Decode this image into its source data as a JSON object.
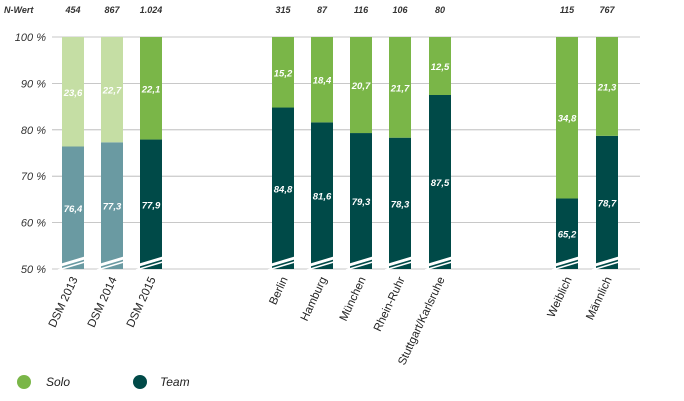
{
  "chart_data": {
    "type": "bar",
    "stacked": true,
    "n_label": "N-Wert",
    "y_ticks": [
      "100 %",
      "90 %",
      "80 %",
      "70 %",
      "60 %",
      "50 %"
    ],
    "y_tick_values": [
      100,
      90,
      80,
      70,
      60,
      50
    ],
    "ylim": [
      50,
      100
    ],
    "axis_break": true,
    "categories": [
      "DSM 2013",
      "DSM 2014",
      "DSM 2015",
      "Berlin",
      "Hamburg",
      "München",
      "Rhein-Ruhr",
      "Stuttgart/Karlsruhe",
      "Weiblich",
      "Männlich"
    ],
    "n_values": [
      "454",
      "867",
      "1.024",
      "315",
      "87",
      "116",
      "106",
      "80",
      "115",
      "767"
    ],
    "series": [
      {
        "name": "Team",
        "values": [
          76.4,
          77.3,
          77.9,
          84.8,
          81.6,
          79.3,
          78.3,
          87.5,
          65.2,
          78.7
        ],
        "labels": [
          "76,4",
          "77,3",
          "77,9",
          "84,8",
          "81,6",
          "79,3",
          "78,3",
          "87,5",
          "65,2",
          "78,7"
        ]
      },
      {
        "name": "Solo",
        "values": [
          23.6,
          22.7,
          22.1,
          15.2,
          18.4,
          20.7,
          21.7,
          12.5,
          34.8,
          21.3
        ],
        "labels": [
          "23,6",
          "22,7",
          "22,1",
          "15,2",
          "18,4",
          "20,7",
          "21,7",
          "12,5",
          "34,8",
          "21,3"
        ]
      }
    ],
    "legend": [
      {
        "name": "Solo"
      },
      {
        "name": "Team"
      }
    ],
    "legend_position": "bottom-left",
    "colors": {
      "solo": "#7ab648",
      "team": "#004a48",
      "solo_light": "#c5dea4",
      "team_light": "#6a9aa2",
      "grid": "#b5b5b5"
    },
    "light_categories": [
      0,
      1
    ]
  }
}
